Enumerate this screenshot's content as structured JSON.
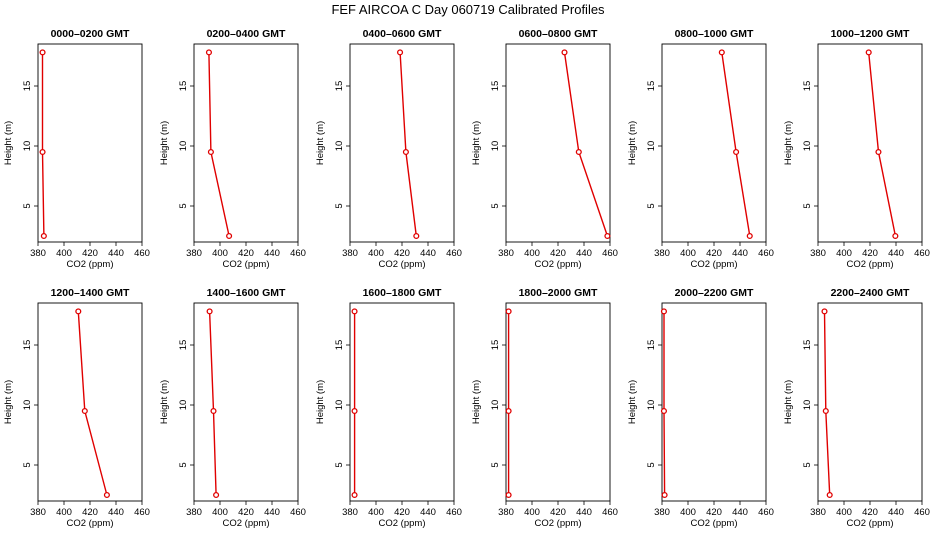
{
  "title": "FEF AIRCOA C  Day 060719  Calibrated Profiles",
  "colors": {
    "series": "#e00000",
    "axis": "#000000"
  },
  "chart_data": {
    "type": "line",
    "title": "FEF AIRCOA C  Day 060719  Calibrated Profiles",
    "xlabel": "CO2 (ppm)",
    "ylabel": "Height (m)",
    "xlim": [
      380,
      460
    ],
    "ylim": [
      2,
      18.5
    ],
    "xticks": [
      380,
      400,
      420,
      440,
      460
    ],
    "yticks": [
      5,
      10,
      15
    ],
    "heights": [
      2.5,
      9.5,
      17.8
    ],
    "grid": false,
    "legend": "none",
    "panels": [
      {
        "title": "0000–0200 GMT",
        "co2": [
          384.5,
          383.5,
          383.5
        ]
      },
      {
        "title": "0200–0400 GMT",
        "co2": [
          407,
          393,
          391.5
        ]
      },
      {
        "title": "0400–0600 GMT",
        "co2": [
          431,
          423,
          418.5
        ]
      },
      {
        "title": "0600–0800 GMT",
        "co2": [
          458,
          436,
          425
        ]
      },
      {
        "title": "0800–1000 GMT",
        "co2": [
          447.5,
          437,
          426
        ]
      },
      {
        "title": "1000–1200 GMT",
        "co2": [
          439.5,
          426.5,
          419
        ]
      },
      {
        "title": "1200–1400 GMT",
        "co2": [
          433,
          416,
          411
        ]
      },
      {
        "title": "1400–1600 GMT",
        "co2": [
          397,
          395,
          392
        ]
      },
      {
        "title": "1600–1800 GMT",
        "co2": [
          383.5,
          383.5,
          383.5
        ]
      },
      {
        "title": "1800–2000 GMT",
        "co2": [
          382,
          382,
          382
        ]
      },
      {
        "title": "2000–2200 GMT",
        "co2": [
          382,
          381.5,
          381.5
        ]
      },
      {
        "title": "2200–2400 GMT",
        "co2": [
          389,
          386,
          385
        ]
      }
    ]
  }
}
